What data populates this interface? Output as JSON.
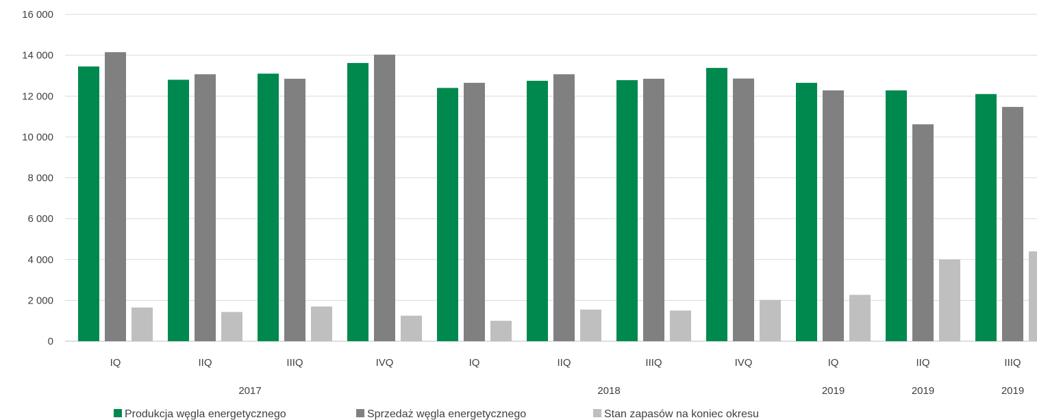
{
  "chart_data": {
    "type": "bar",
    "categories": [
      "IQ",
      "IIQ",
      "IIIQ",
      "IVQ",
      "IQ",
      "IIQ",
      "IIIQ",
      "IVQ",
      "IQ",
      "IIQ",
      "IIIQ"
    ],
    "groups": [
      {
        "label": "2017",
        "start": 0,
        "end": 3
      },
      {
        "label": "2018",
        "start": 4,
        "end": 7
      },
      {
        "label": "2019",
        "start": 8,
        "end": 8
      },
      {
        "label": "2019",
        "start": 9,
        "end": 9
      },
      {
        "label": "2019",
        "start": 10,
        "end": 10
      }
    ],
    "series": [
      {
        "name": "Produkcja węgla energetycznego",
        "color": "#00894F",
        "values": [
          13450,
          12800,
          13100,
          13620,
          12400,
          12750,
          12780,
          13380,
          12650,
          12280,
          12100
        ]
      },
      {
        "name": "Sprzedaż węgla energetycznego",
        "color": "#808080",
        "values": [
          14150,
          13070,
          12850,
          14030,
          12650,
          13070,
          12850,
          12860,
          12280,
          10620,
          11470
        ]
      },
      {
        "name": "Stan zapasów na koniec okresu",
        "color": "#BFBFBF",
        "values": [
          1650,
          1430,
          1700,
          1250,
          1000,
          1550,
          1500,
          2020,
          2270,
          4000,
          4400
        ]
      }
    ],
    "ylim": [
      0,
      16000
    ],
    "yticks": [
      0,
      2000,
      4000,
      6000,
      8000,
      10000,
      12000,
      14000,
      16000
    ],
    "ytick_labels": [
      "0",
      "2 000",
      "4 000",
      "6 000",
      "8 000",
      "10 000",
      "12 000",
      "14 000",
      "16 000"
    ],
    "title": "",
    "xlabel": "",
    "ylabel": "",
    "grid": true,
    "legend_position": "bottom"
  }
}
